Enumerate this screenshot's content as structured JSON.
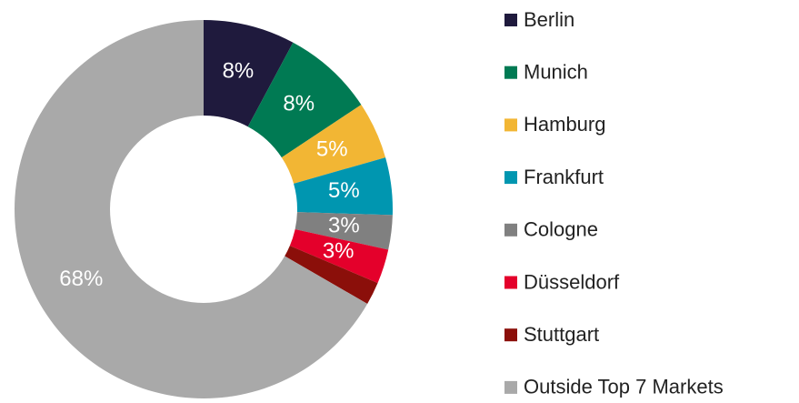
{
  "chart_data": {
    "type": "donut",
    "categories": [
      "Berlin",
      "Munich",
      "Hamburg",
      "Frankfurt",
      "Cologne",
      "Düsseldorf",
      "Stuttgart",
      "Outside Top 7 Markets"
    ],
    "values": [
      8,
      8,
      5,
      5,
      3,
      3,
      2,
      68
    ],
    "value_labels": [
      "8%",
      "8%",
      "5%",
      "5%",
      "3%",
      "3%",
      null,
      "68%"
    ],
    "colors": [
      "#1f1a3d",
      "#007a53",
      "#f2b634",
      "#0096b0",
      "#808080",
      "#e4002b",
      "#8b0f0a",
      "#a9a9a9"
    ],
    "legend": "right"
  }
}
